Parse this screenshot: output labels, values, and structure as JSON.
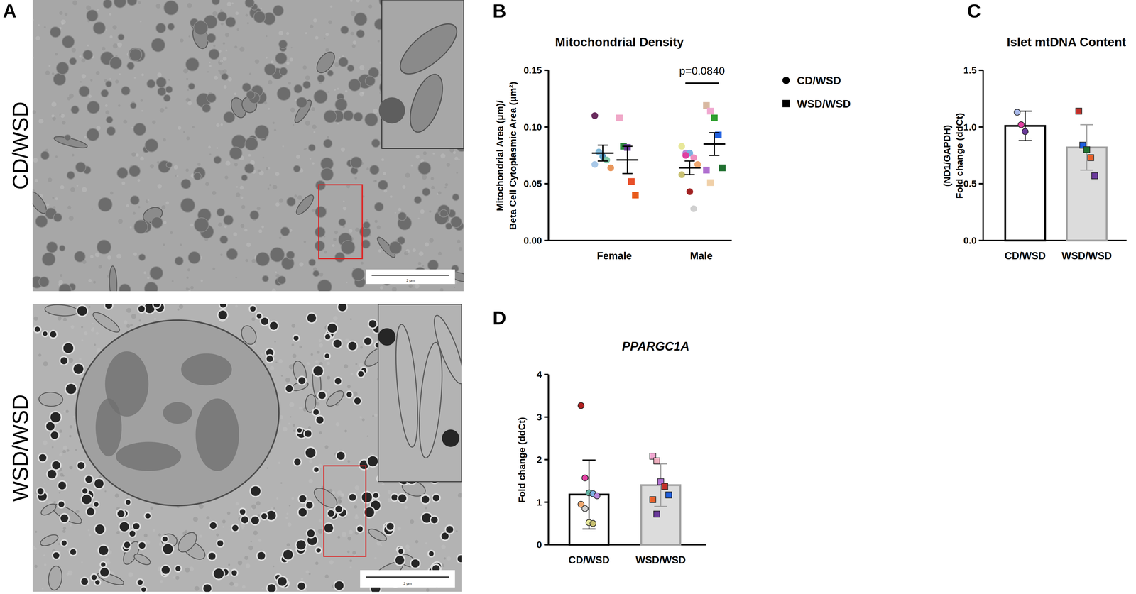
{
  "image_panel": {
    "panel": "A",
    "rows": [
      {
        "label": "CD/WSD",
        "scale_bar": "2 μm"
      },
      {
        "label": "WSD/WSD",
        "scale_bar": "2 μm"
      }
    ]
  },
  "chart_data": [
    {
      "panel": "B",
      "type": "scatter",
      "title": "Mitochondrial Density",
      "y_label": [
        "Mitochondrial Area (μm)/",
        "Beta Cell Cytoplasmic Area (μm²)"
      ],
      "categories": [
        "Female",
        "Male"
      ],
      "ylim": [
        0,
        0.15
      ],
      "yticks": [
        {
          "value": 0,
          "label": "0.00"
        },
        {
          "value": 0.05,
          "label": "0.05"
        },
        {
          "value": 0.1,
          "label": "0.10"
        },
        {
          "value": 0.15,
          "label": "0.15"
        }
      ],
      "legend": "right",
      "series": [
        {
          "name": "CD/WSD",
          "marker": "circle",
          "color": "#000000",
          "values": [
            [
              0.11,
              0.078,
              0.074,
              0.071,
              0.064,
              0.067
            ],
            [
              0.083,
              0.077,
              0.077,
              0.073,
              0.067,
              0.058,
              0.075,
              0.043,
              0.028
            ]
          ],
          "colors": [
            [
              "#6a2c5e",
              "#7fb8d8",
              "#5aa0c8",
              "#7fc8a8",
              "#e8955a",
              "#a8c8e8"
            ],
            [
              "#e8e89a",
              "#b888d8",
              "#7ab0e0",
              "#f090c0",
              "#f0a870",
              "#c8c070",
              "#e040a0",
              "#a02020",
              "#d0d0d0"
            ]
          ],
          "mean": [
            0.077,
            0.064
          ],
          "error": [
            0.007,
            0.006
          ]
        },
        {
          "name": "WSD/WSD",
          "marker": "square",
          "color": "#000000",
          "values": [
            [
              0.108,
              0.083,
              0.082,
              0.052,
              0.04
            ],
            [
              0.119,
              0.114,
              0.108,
              0.093,
              0.064,
              0.062,
              0.051
            ]
          ],
          "colors": [
            [
              "#f0a8c8",
              "#2e8b3e",
              "#6a3a9a",
              "#e8502a",
              "#e85a1a"
            ],
            [
              "#d8b8a0",
              "#f0a8d0",
              "#30a030",
              "#2060e0",
              "#207030",
              "#b070d0",
              "#f0d0a8"
            ]
          ],
          "mean": [
            0.071,
            0.085
          ],
          "error": [
            0.012,
            0.01
          ]
        }
      ],
      "annotations": [
        {
          "text": "p=0.0840",
          "category": "Male"
        }
      ]
    },
    {
      "panel": "C",
      "type": "bar",
      "title": "Islet mtDNA Content",
      "y_label": [
        "(ND1/GAPDH)",
        "Fold change (ddCt)"
      ],
      "categories": [
        "CD/WSD",
        "WSD/WSD"
      ],
      "values": [
        1.01,
        0.82
      ],
      "error": [
        0.13,
        0.2
      ],
      "colors": [
        "#ffffff",
        "#dcdcdc"
      ],
      "ylim": [
        0,
        1.5
      ],
      "yticks": [
        {
          "value": 0,
          "label": "0.0"
        },
        {
          "value": 0.5,
          "label": "0.5"
        },
        {
          "value": 1,
          "label": "1.0"
        },
        {
          "value": 1.5,
          "label": "1.5"
        }
      ],
      "points": [
        {
          "marker": "circle",
          "values": [
            1.13,
            1.02,
            0.96
          ],
          "colors": [
            "#a8b8e8",
            "#e040a0",
            "#6a3a9a"
          ]
        },
        {
          "marker": "square",
          "values": [
            1.14,
            0.84,
            0.8,
            0.73,
            0.57
          ],
          "colors": [
            "#c0302a",
            "#2060e0",
            "#207030",
            "#e8602a",
            "#6a3a9a"
          ]
        }
      ]
    },
    {
      "panel": "D",
      "type": "bar",
      "title": "PPARGC1A",
      "y_label": [
        "Fold change (ddCt)"
      ],
      "categories": [
        "CD/WSD",
        "WSD/WSD"
      ],
      "values": [
        1.18,
        1.4
      ],
      "error": [
        0.81,
        0.5
      ],
      "colors": [
        "#ffffff",
        "#dcdcdc"
      ],
      "ylim": [
        0,
        4
      ],
      "yticks": [
        0,
        1,
        2,
        3,
        4
      ],
      "points": [
        {
          "marker": "circle",
          "values": [
            3.27,
            1.57,
            1.22,
            1.2,
            1.15,
            0.95,
            0.85,
            0.52,
            0.5
          ],
          "colors": [
            "#b02020",
            "#e040a0",
            "#60b0a0",
            "#7ab0e0",
            "#b888d8",
            "#f0a870",
            "#d0d0d0",
            "#e8e89a",
            "#c8c070"
          ]
        },
        {
          "marker": "square",
          "values": [
            2.08,
            1.97,
            1.48,
            1.37,
            1.17,
            1.06,
            0.72
          ],
          "colors": [
            "#f0a8d0",
            "#f0b0c0",
            "#b070d0",
            "#c0302a",
            "#2060e0",
            "#e8602a",
            "#6a3a9a"
          ]
        }
      ]
    }
  ]
}
